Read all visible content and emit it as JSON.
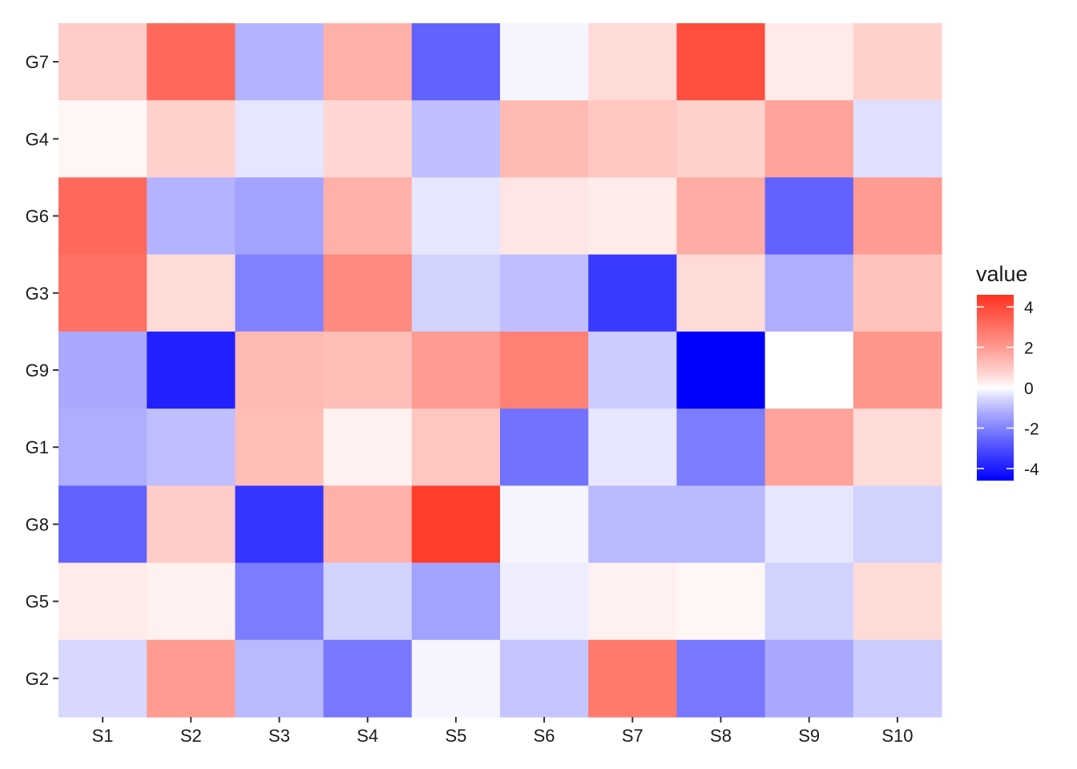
{
  "chart_data": {
    "type": "heatmap",
    "title": "",
    "xlabel": "",
    "ylabel": "",
    "x_categories": [
      "S1",
      "S2",
      "S3",
      "S4",
      "S5",
      "S6",
      "S7",
      "S8",
      "S9",
      "S10"
    ],
    "y_categories": [
      "G7",
      "G4",
      "G6",
      "G3",
      "G9",
      "G1",
      "G8",
      "G5",
      "G2"
    ],
    "values": [
      [
        0.9,
        3.2,
        -1.1,
        1.5,
        -2.6,
        -0.1,
        0.6,
        3.9,
        0.3,
        0.8
      ],
      [
        0.1,
        0.8,
        -0.3,
        0.7,
        -0.9,
        1.3,
        1.0,
        0.8,
        1.8,
        -0.4
      ],
      [
        3.2,
        -1.1,
        -1.4,
        1.5,
        -0.3,
        0.4,
        0.3,
        1.6,
        -2.6,
        2.0
      ],
      [
        3.0,
        0.6,
        -2.0,
        2.4,
        -0.6,
        -0.9,
        -3.4,
        0.6,
        -1.2,
        1.1
      ],
      [
        -1.3,
        -3.9,
        1.3,
        1.2,
        2.0,
        2.6,
        -0.7,
        -4.6,
        0.0,
        2.1
      ],
      [
        -1.2,
        -0.9,
        1.2,
        0.2,
        1.0,
        -2.3,
        -0.3,
        -2.1,
        1.8,
        0.6
      ],
      [
        -2.6,
        0.9,
        -3.5,
        1.5,
        4.3,
        -0.1,
        -1.0,
        -1.0,
        -0.3,
        -0.6
      ],
      [
        0.3,
        0.2,
        -2.1,
        -0.6,
        -1.4,
        -0.2,
        0.2,
        0.1,
        -0.6,
        0.6
      ],
      [
        -0.5,
        2.0,
        -1.0,
        -2.2,
        -0.1,
        -0.8,
        2.8,
        -2.2,
        -1.3,
        -0.7
      ]
    ],
    "legend": {
      "title": "value",
      "position": "right",
      "ticks": [
        4,
        2,
        0,
        -2,
        -4
      ],
      "tick_labels": [
        "4",
        "2",
        "0",
        "-2",
        "-4"
      ],
      "range": [
        -4.6,
        4.6
      ]
    },
    "colors": {
      "low": "#0000ff",
      "mid": "#ffffff",
      "high": "#ff3320"
    },
    "grid": false
  }
}
